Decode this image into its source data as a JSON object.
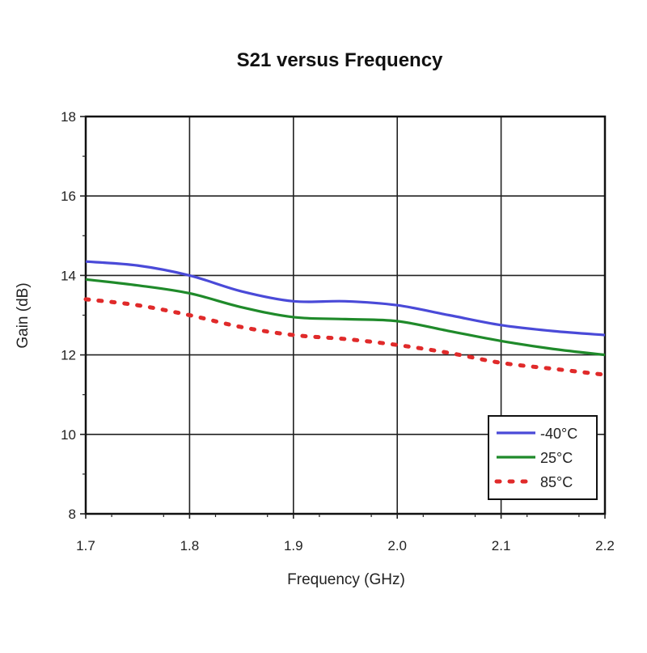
{
  "chart_data": {
    "type": "line",
    "title": "S21 versus Frequency",
    "xlabel": "Frequency (GHz)",
    "ylabel": "Gain (dB)",
    "xlim": [
      1.7,
      2.2
    ],
    "ylim": [
      8,
      18
    ],
    "x_ticks": [
      "1.7",
      "1.8",
      "1.9",
      "2.0",
      "2.1",
      "2.2"
    ],
    "y_ticks": [
      "8",
      "10",
      "12",
      "14",
      "16",
      "18"
    ],
    "grid": true,
    "legend_position": "bottom-right",
    "x": [
      1.7,
      1.75,
      1.8,
      1.85,
      1.9,
      1.95,
      2.0,
      2.05,
      2.1,
      2.15,
      2.2
    ],
    "series": [
      {
        "name": "-40°C",
        "color": "#4a4ad8",
        "style": "solid",
        "values": [
          14.35,
          14.25,
          14.0,
          13.6,
          13.35,
          13.35,
          13.25,
          13.0,
          12.75,
          12.6,
          12.5
        ]
      },
      {
        "name": "25°C",
        "color": "#1f8a2a",
        "style": "solid",
        "values": [
          13.9,
          13.75,
          13.55,
          13.2,
          12.95,
          12.9,
          12.85,
          12.6,
          12.35,
          12.15,
          12.0
        ]
      },
      {
        "name": "85°C",
        "color": "#e02a2a",
        "style": "dotted",
        "values": [
          13.4,
          13.25,
          13.0,
          12.7,
          12.5,
          12.4,
          12.25,
          12.05,
          11.8,
          11.65,
          11.5
        ]
      }
    ]
  }
}
